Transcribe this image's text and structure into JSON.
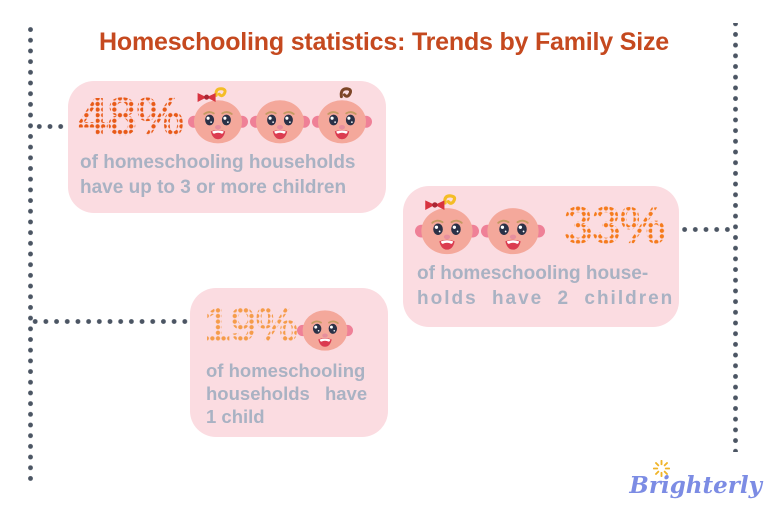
{
  "page": {
    "title": "Homeschooling statistics: Trends by Family Size"
  },
  "colors": {
    "background": "#ffffff",
    "title": "#c5491f",
    "card_bg": "#fbdce1",
    "caption": "#a9b2c3",
    "connector": "#4b5563",
    "pct_48": "#e85a17",
    "pct_33": "#f57b1c",
    "pct_19": "#f59c4a",
    "logo": "#7c8ce4",
    "sparkle": "#f0b429"
  },
  "cards": [
    {
      "id": "three-or-more-children",
      "percent": "48%",
      "lines": [
        "of homeschooling households",
        "have up to 3 or more children"
      ],
      "babies": [
        "girl",
        "bald",
        "boy"
      ]
    },
    {
      "id": "two-children",
      "percent": "33%",
      "lines": [
        "of homeschooling house-",
        "holds have 2 children"
      ],
      "babies": [
        "girl",
        "bald"
      ]
    },
    {
      "id": "one-child",
      "percent": "19%",
      "lines": [
        "of homeschooling",
        "households have",
        "1 child"
      ],
      "babies": [
        "bald"
      ]
    }
  ],
  "logo": {
    "text": "Brighterly"
  },
  "chart_data": {
    "type": "table",
    "style": "pictogram infographic",
    "title": "Homeschooling statistics: Trends by Family Size",
    "categories": [
      "up to 3 or more children",
      "2 children",
      "1 child"
    ],
    "values": [
      48,
      33,
      19
    ],
    "unit": "%",
    "notes": [
      "48% of homeschooling households have up to 3 or more children",
      "33% of homeschooling households have 2 children",
      "19% of homeschooling households have 1 child"
    ]
  }
}
